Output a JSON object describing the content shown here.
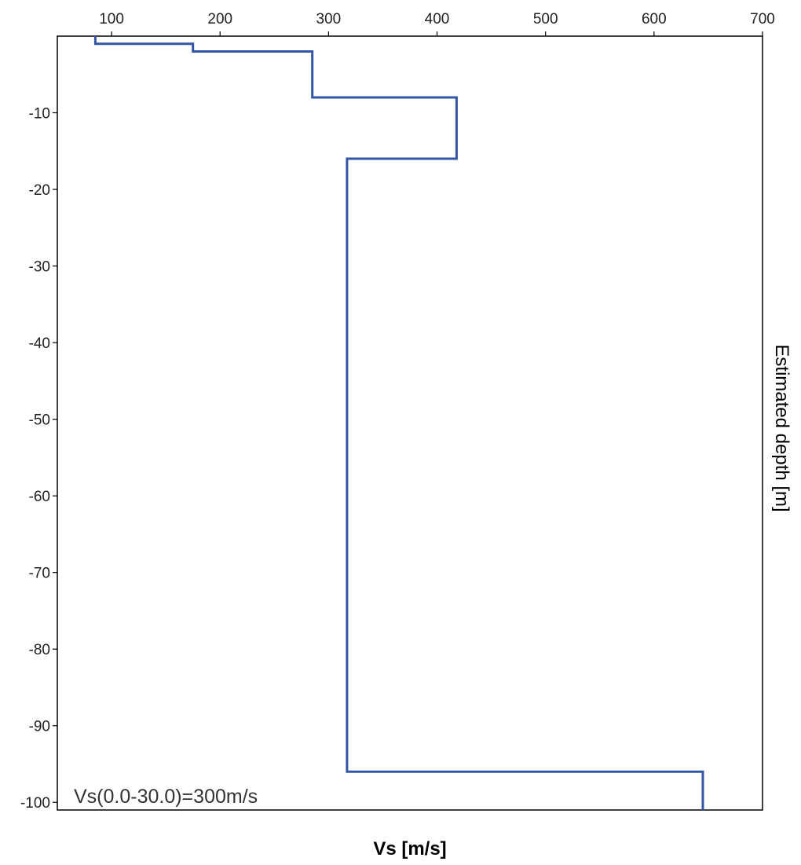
{
  "chart_data": {
    "type": "line",
    "title": "",
    "xlabel": "Vs [m/s]",
    "ylabel": "Estimated depth [m]",
    "xlim": [
      50,
      700
    ],
    "ylim": [
      -101,
      0
    ],
    "x_ticks": [
      100,
      200,
      300,
      400,
      500,
      600,
      700
    ],
    "y_ticks": [
      -10,
      -20,
      -30,
      -40,
      -50,
      -60,
      -70,
      -80,
      -90,
      -100
    ],
    "x_tick_labels": [
      "100",
      "200",
      "300",
      "400",
      "500",
      "600",
      "700"
    ],
    "y_tick_labels": [
      "-10",
      "-20",
      "-30",
      "-40",
      "-50",
      "-60",
      "-70",
      "-80",
      "-90",
      "-100"
    ],
    "grid": false,
    "annotation": "Vs(0.0-30.0)=300m/s",
    "line_color": "#3355a5",
    "series": [
      {
        "profile": [
          {
            "vs": 85,
            "top": 0,
            "bottom": -1
          },
          {
            "vs": 175,
            "top": -1,
            "bottom": -2
          },
          {
            "vs": 285,
            "top": -2,
            "bottom": -8
          },
          {
            "vs": 418,
            "top": -8,
            "bottom": -16
          },
          {
            "vs": 317,
            "top": -16,
            "bottom": -96
          },
          {
            "vs": 645,
            "top": -96,
            "bottom": -101
          }
        ]
      }
    ]
  }
}
